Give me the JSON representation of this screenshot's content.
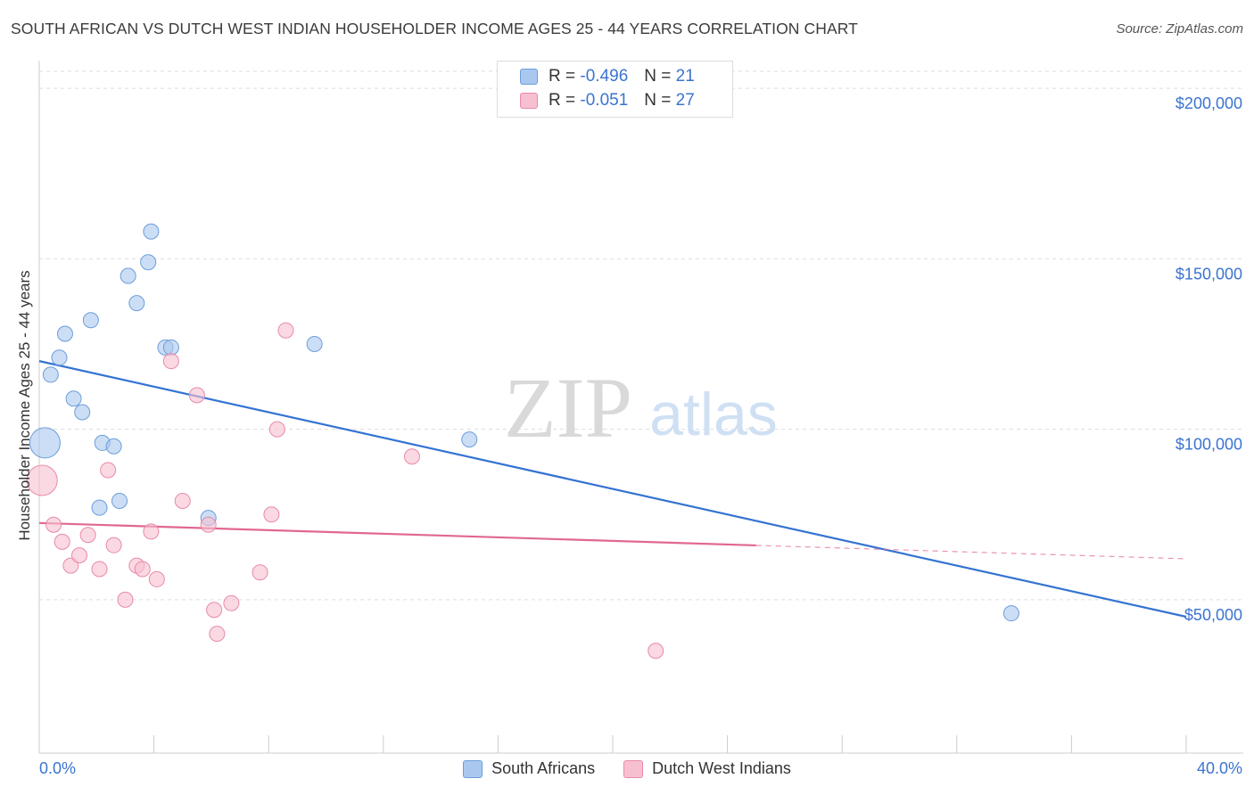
{
  "header": {
    "title": "SOUTH AFRICAN VS DUTCH WEST INDIAN HOUSEHOLDER INCOME AGES 25 - 44 YEARS CORRELATION CHART",
    "source": "Source: ZipAtlas.com"
  },
  "legend": {
    "rows": [
      {
        "r_label": "R =",
        "r_value": "-0.496",
        "n_label": "N =",
        "n_value": "21"
      },
      {
        "r_label": "R =",
        "r_value": "-0.051",
        "n_label": "N =",
        "n_value": "27"
      }
    ]
  },
  "watermark": {
    "zip": "ZIP",
    "atlas": "atlas"
  },
  "colors": {
    "blue_fill": "#aac8ef",
    "blue_stroke": "#6b9ddb",
    "blue_line": "#3473d2",
    "pink_fill": "#f6c0d0",
    "pink_stroke": "#e88aa8",
    "pink_line": "#e06890",
    "axis_label": "#3b74d0",
    "grid": "#dddddd"
  },
  "chart_data": {
    "type": "scatter",
    "title": "SOUTH AFRICAN VS DUTCH WEST INDIAN HOUSEHOLDER INCOME AGES 25 - 44 YEARS CORRELATION CHART",
    "xlabel": "",
    "ylabel": "Householder Income Ages 25 - 44 years",
    "xlim": [
      0,
      40
    ],
    "ylim": [
      5000,
      205000
    ],
    "x_tick_labels": [
      "0.0%",
      "40.0%"
    ],
    "y_ticks": [
      50000,
      100000,
      150000,
      200000
    ],
    "y_tick_labels": [
      "$50,000",
      "$100,000",
      "$150,000",
      "$200,000"
    ],
    "grid": true,
    "series": [
      {
        "name": "South Africans",
        "color": "blue",
        "points": [
          {
            "x": 0.2,
            "y": 96000,
            "big": true
          },
          {
            "x": 0.4,
            "y": 116000
          },
          {
            "x": 0.7,
            "y": 121000
          },
          {
            "x": 0.9,
            "y": 128000
          },
          {
            "x": 1.2,
            "y": 109000
          },
          {
            "x": 1.5,
            "y": 105000
          },
          {
            "x": 1.8,
            "y": 132000
          },
          {
            "x": 2.1,
            "y": 77000
          },
          {
            "x": 2.2,
            "y": 96000
          },
          {
            "x": 2.6,
            "y": 95000
          },
          {
            "x": 2.8,
            "y": 79000
          },
          {
            "x": 3.1,
            "y": 145000
          },
          {
            "x": 3.4,
            "y": 137000
          },
          {
            "x": 3.8,
            "y": 149000
          },
          {
            "x": 3.9,
            "y": 158000
          },
          {
            "x": 4.4,
            "y": 124000
          },
          {
            "x": 4.6,
            "y": 124000
          },
          {
            "x": 5.9,
            "y": 74000
          },
          {
            "x": 9.6,
            "y": 125000
          },
          {
            "x": 15.0,
            "y": 97000
          },
          {
            "x": 33.9,
            "y": 46000
          }
        ],
        "trend": {
          "x0": 0,
          "y0": 120000,
          "x1": 40,
          "y1": 45000,
          "solid_until": 40
        }
      },
      {
        "name": "Dutch West Indians",
        "color": "pink",
        "points": [
          {
            "x": 0.1,
            "y": 85000,
            "big": true
          },
          {
            "x": 0.5,
            "y": 72000
          },
          {
            "x": 0.8,
            "y": 67000
          },
          {
            "x": 1.1,
            "y": 60000
          },
          {
            "x": 1.4,
            "y": 63000
          },
          {
            "x": 1.7,
            "y": 69000
          },
          {
            "x": 2.1,
            "y": 59000
          },
          {
            "x": 2.4,
            "y": 88000
          },
          {
            "x": 2.6,
            "y": 66000
          },
          {
            "x": 3.0,
            "y": 50000
          },
          {
            "x": 3.4,
            "y": 60000
          },
          {
            "x": 3.6,
            "y": 59000
          },
          {
            "x": 3.9,
            "y": 70000
          },
          {
            "x": 4.1,
            "y": 56000
          },
          {
            "x": 4.6,
            "y": 120000
          },
          {
            "x": 5.0,
            "y": 79000
          },
          {
            "x": 5.5,
            "y": 110000
          },
          {
            "x": 5.9,
            "y": 72000
          },
          {
            "x": 6.1,
            "y": 47000
          },
          {
            "x": 6.2,
            "y": 40000
          },
          {
            "x": 6.7,
            "y": 49000
          },
          {
            "x": 7.7,
            "y": 58000
          },
          {
            "x": 8.1,
            "y": 75000
          },
          {
            "x": 8.3,
            "y": 100000
          },
          {
            "x": 8.6,
            "y": 129000
          },
          {
            "x": 13.0,
            "y": 92000
          },
          {
            "x": 21.5,
            "y": 35000
          }
        ],
        "trend": {
          "x0": 0,
          "y0": 72500,
          "x1": 40,
          "y1": 62000,
          "solid_until": 25
        }
      }
    ]
  },
  "bottom_legend": {
    "items": [
      {
        "label": "South Africans"
      },
      {
        "label": "Dutch West Indians"
      }
    ]
  }
}
